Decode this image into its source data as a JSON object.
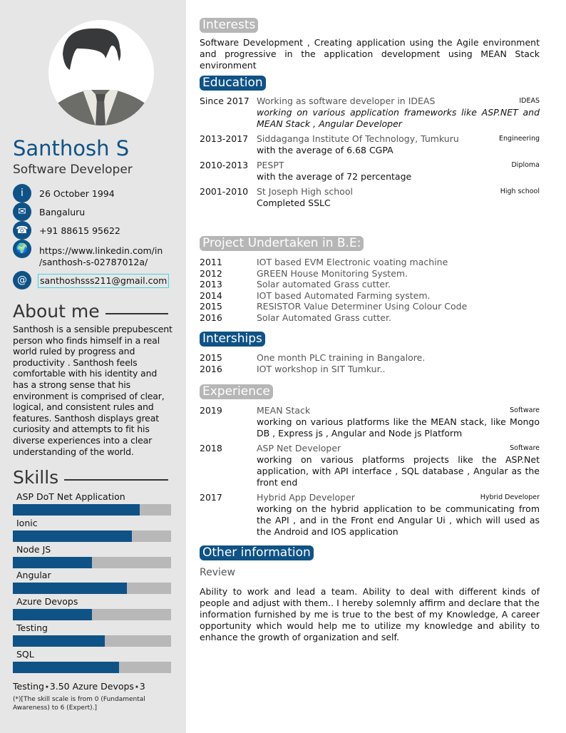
{
  "profile": {
    "name": "Santhosh S",
    "title": "Software Developer"
  },
  "contact": [
    {
      "icon": "info-icon",
      "glyph": "i",
      "text": "26 October 1994"
    },
    {
      "icon": "envelope-icon",
      "glyph": "✉",
      "text": "Bangaluru"
    },
    {
      "icon": "phone-icon",
      "glyph": "☎",
      "text": "+91 88615 95622"
    },
    {
      "icon": "globe-icon",
      "glyph": "🌍",
      "text": "https://www.linkedin.com/in /santhosh-s-02787012a/"
    },
    {
      "icon": "at-icon",
      "glyph": "@",
      "text": "santhoshsss211@gmail.com"
    }
  ],
  "about": {
    "heading": "About me",
    "text": "Santhosh is a sensible prepubescent person who finds himself in a real world ruled by progress and productivity . Santhosh feels comfortable with his identity and has a strong sense that his environment is comprised of clear, logical, and consistent rules and features. Santhosh displays great curiosity and attempts to fit his diverse experiences into a clear understanding of the world."
  },
  "skills": {
    "heading": "Skills",
    "items": [
      {
        "label": "ASP DoT Net Application",
        "level": 0.8
      },
      {
        "label": "Ionic",
        "level": 0.75
      },
      {
        "label": "Node JS",
        "level": 0.5
      },
      {
        "label": "Angular",
        "level": 0.72
      },
      {
        "label": "Azure Devops",
        "level": 0.5
      },
      {
        "label": "Testing",
        "level": 0.58
      },
      {
        "label": "SQL",
        "level": 0.67
      }
    ],
    "summary": "Testing⋆3.50 Azure Devops⋆3",
    "note": "(*)[The skill scale is from 0 (Fundamental Awareness) to 6 (Expert).]"
  },
  "colors": {
    "accent": "#0f5286",
    "sidebar": "#e6e6e6",
    "grey_heading": "#b6b6b6"
  },
  "interests": {
    "heading": "Interests",
    "text": "Software Development , Creating application using the Agile environment and progressive in the application development using MEAN Stack environment"
  },
  "education": {
    "heading": "Education",
    "items": [
      {
        "date": "Since 2017",
        "title": "Working as software developer in IDEAS",
        "tag": "IDEAS",
        "desc": "working on various application frameworks like ASP.NET and MEAN Stack , Angular Developer",
        "italic": true
      },
      {
        "date": "2013-2017",
        "title": "Siddaganga Institute Of Technology, Tumkuru",
        "tag": "Engineering",
        "desc": "with the average of 6.68 CGPA"
      },
      {
        "date": "2010-2013",
        "title": "PESPT",
        "tag": "Diploma",
        "desc": "with the average of 72 percentage"
      },
      {
        "date": "2001-2010",
        "title": "St Joseph High school",
        "tag": "High school",
        "desc": "Completed SSLC"
      }
    ]
  },
  "projects": {
    "heading": "Project Undertaken in B.E:",
    "items": [
      {
        "date": "2011",
        "text": "IOT based EVM Electronic voating machine"
      },
      {
        "date": "2012",
        "text": "GREEN House Monitoring System."
      },
      {
        "date": "2013",
        "text": "Solar automated Grass cutter."
      },
      {
        "date": "2014",
        "text": "IOT based Automated Farming system."
      },
      {
        "date": "2015",
        "text": "RESISTOR Value Determiner Using Colour Code"
      },
      {
        "date": "2016",
        "text": "Solar Automated Grass cutter."
      }
    ]
  },
  "internships": {
    "heading": "Interships",
    "items": [
      {
        "date": "2015",
        "text": "One month PLC training in Bangalore."
      },
      {
        "date": "2016",
        "text": "IOT workshop in SIT Tumkur.."
      }
    ]
  },
  "experience": {
    "heading": "Experience",
    "items": [
      {
        "date": "2019",
        "title": "MEAN Stack",
        "tag": "Software",
        "desc": "working on various platforms like the MEAN stack, like Mongo DB , Express js , Angular and Node js Platform"
      },
      {
        "date": "2018",
        "title": "ASP Net Developer",
        "tag": "Software",
        "desc": "working on various platforms projects like the ASP.Net application, with API interface , SQL database , Angular as the front end"
      },
      {
        "date": "2017",
        "title": "Hybrid App Developer",
        "tag": "Hybrid Developer",
        "desc": "working on the hybrid application to be communicating from the API , and in the Front end Angular Ui , which will used as the Android and IOS application"
      }
    ]
  },
  "other": {
    "heading": "Other information",
    "subheading": "Review",
    "text": "Ability to work and lead a team. Ability to deal with different kinds of people and adjust with them.. I hereby solemnly affirm and declare that the information furnished by me is true to the best of my Knowledge, A career opportunity which would help me to utilize my knowledge and ability to enhance the growth of organization and self."
  }
}
